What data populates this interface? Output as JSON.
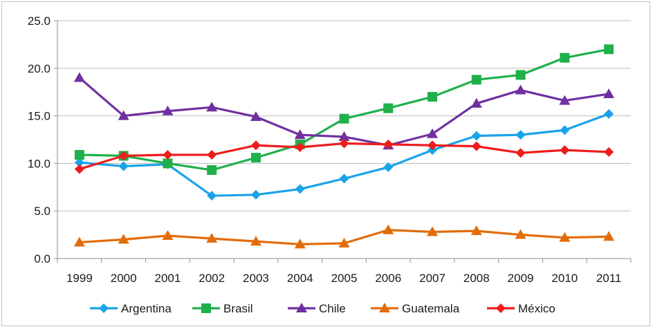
{
  "chart_data": {
    "type": "line",
    "x": [
      "1999",
      "2000",
      "2001",
      "2002",
      "2003",
      "2004",
      "2005",
      "2006",
      "2007",
      "2008",
      "2009",
      "2010",
      "2011"
    ],
    "ylim": [
      0,
      25
    ],
    "yticks": [
      "0.0",
      "5.0",
      "10.0",
      "15.0",
      "20.0",
      "25.0"
    ],
    "grid": true,
    "legend_position": "bottom",
    "series": [
      {
        "name": "Argentina",
        "color": "#1aa3e8",
        "marker": "diamond",
        "values": [
          10.1,
          9.7,
          9.9,
          6.6,
          6.7,
          7.3,
          8.4,
          9.6,
          11.4,
          12.9,
          13.0,
          13.5,
          15.2
        ]
      },
      {
        "name": "Brasil",
        "color": "#1fb04a",
        "marker": "square",
        "values": [
          10.9,
          10.8,
          10.0,
          9.3,
          10.6,
          12.0,
          14.7,
          15.8,
          17.0,
          18.8,
          19.3,
          21.1,
          22.0
        ]
      },
      {
        "name": "Chile",
        "color": "#7030a0",
        "marker": "triangle",
        "values": [
          19.0,
          15.0,
          15.5,
          15.9,
          14.9,
          13.0,
          12.8,
          11.9,
          13.1,
          16.3,
          17.7,
          16.6,
          17.3
        ]
      },
      {
        "name": "Guatemala",
        "color": "#e36c0a",
        "marker": "triangle",
        "values": [
          1.7,
          2.0,
          2.4,
          2.1,
          1.8,
          1.5,
          1.6,
          3.0,
          2.8,
          2.9,
          2.5,
          2.2,
          2.3
        ]
      },
      {
        "name": "México",
        "color": "#ee1c1c",
        "marker": "diamond",
        "values": [
          9.4,
          10.8,
          10.9,
          10.9,
          11.9,
          11.7,
          12.1,
          12.0,
          11.9,
          11.8,
          11.1,
          11.4,
          11.2
        ]
      }
    ]
  }
}
